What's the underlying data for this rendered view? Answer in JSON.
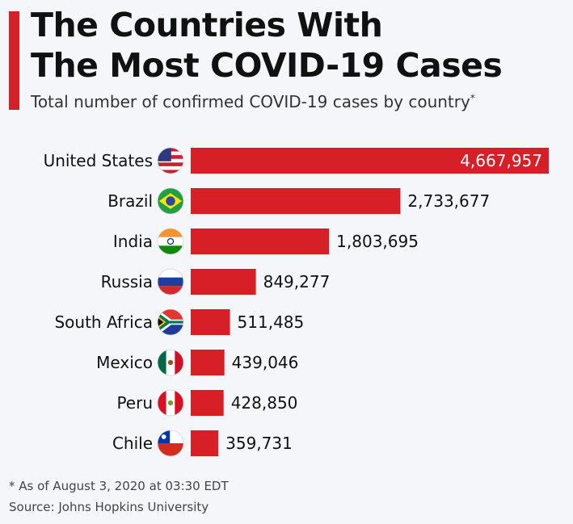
{
  "header": {
    "title_line1": "The Countries With",
    "title_line2": "The Most COVID-19 Cases",
    "subtitle": "Total number of confirmed COVID-19 cases by country",
    "subtitle_mark": "*"
  },
  "footer": {
    "note": "* As of August 3, 2020 at 03:30 EDT",
    "source": "Source: Johns Hopkins University"
  },
  "colors": {
    "accent": "#d61f26",
    "bar": "#d61f26"
  },
  "chart_data": {
    "type": "bar",
    "orientation": "horizontal",
    "title": "The Countries With The Most COVID-19 Cases",
    "subtitle": "Total number of confirmed COVID-19 cases by country*",
    "categories": [
      "United States",
      "Brazil",
      "India",
      "Russia",
      "South Africa",
      "Mexico",
      "Peru",
      "Chile"
    ],
    "values": [
      4667957,
      2733677,
      1803695,
      849277,
      511485,
      439046,
      428850,
      359731
    ],
    "value_labels": [
      "4,667,957",
      "2,733,677",
      "1,803,695",
      "849,277",
      "511,485",
      "439,046",
      "428,850",
      "359,731"
    ],
    "flags": [
      "us-flag-icon",
      "brazil-flag-icon",
      "india-flag-icon",
      "russia-flag-icon",
      "south-africa-flag-icon",
      "mexico-flag-icon",
      "peru-flag-icon",
      "chile-flag-icon"
    ],
    "xlim": [
      0,
      4667957
    ],
    "grid": false,
    "legend": "none"
  }
}
